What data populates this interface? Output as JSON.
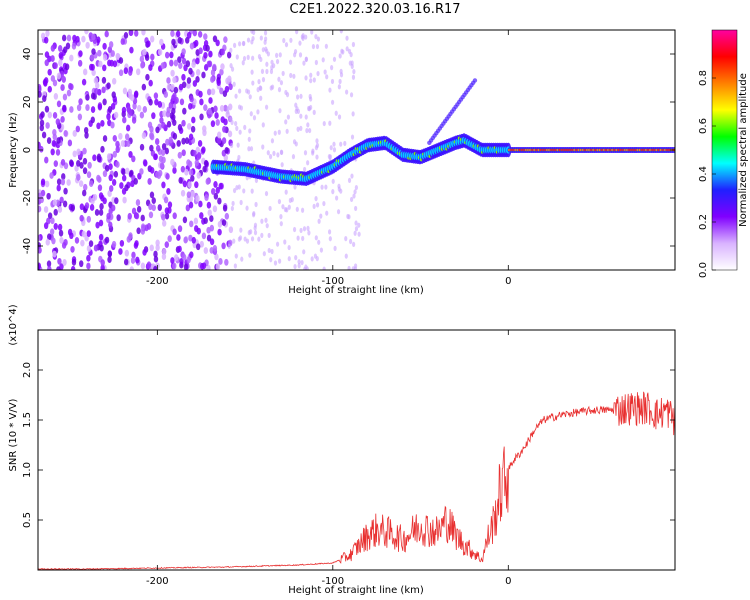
{
  "title": "C2E1.2022.320.03.16.R17",
  "colors": {
    "line": "#e83030",
    "axis": "#000000",
    "background": "#ffffff"
  },
  "chart_data": [
    {
      "type": "heatmap",
      "xlabel": "Height of straight line (km)",
      "ylabel": "Frequency (Hz)",
      "xlim": [
        -268,
        95
      ],
      "ylim": [
        -50,
        50
      ],
      "xticks": [
        -200,
        -100,
        0
      ],
      "yticks": [
        -40,
        -20,
        0,
        20,
        40
      ],
      "colorbar": {
        "label": "Normalized spectral amplitude",
        "range": [
          0,
          1
        ],
        "ticks": [
          "0.0",
          "0.2",
          "0.4",
          "0.6",
          "0.8"
        ],
        "colormap": [
          "#ffffff",
          "#d9b3ff",
          "#8000ff",
          "#2020ff",
          "#00ffff",
          "#00ff00",
          "#ffff00",
          "#ff8000",
          "#ff0000",
          "#ff00a0"
        ]
      },
      "ridge": [
        {
          "x": -168,
          "y": -7
        },
        {
          "x": -150,
          "y": -8
        },
        {
          "x": -130,
          "y": -11
        },
        {
          "x": -115,
          "y": -12
        },
        {
          "x": -100,
          "y": -7
        },
        {
          "x": -90,
          "y": -2
        },
        {
          "x": -80,
          "y": 2
        },
        {
          "x": -70,
          "y": 3
        },
        {
          "x": -60,
          "y": -2
        },
        {
          "x": -50,
          "y": -3
        },
        {
          "x": -40,
          "y": 0
        },
        {
          "x": -30,
          "y": 3
        },
        {
          "x": -25,
          "y": 4
        },
        {
          "x": -15,
          "y": 0
        },
        {
          "x": 0,
          "y": 0
        },
        {
          "x": 95,
          "y": 0
        }
      ]
    },
    {
      "type": "line",
      "xlabel": "Height of straight line (km)",
      "ylabel": "SNR (10 * V/V)",
      "scale_label": "(x10^4)",
      "xlim": [
        -268,
        95
      ],
      "ylim": [
        0,
        2.4
      ],
      "xticks": [
        -200,
        -100,
        0
      ],
      "yticks": [
        0.5,
        1.0,
        1.5,
        2.0
      ],
      "series": [
        {
          "values_units": "x10^4",
          "x": [
            -268,
            -240,
            -200,
            -160,
            -140,
            -120,
            -100,
            -90,
            -85,
            -80,
            -75,
            -70,
            -65,
            -60,
            -55,
            -50,
            -45,
            -40,
            -35,
            -30,
            -25,
            -20,
            -15,
            -12,
            -8,
            -5,
            -2,
            0,
            3,
            6,
            10,
            15,
            20,
            30,
            40,
            50,
            60,
            70,
            80,
            85,
            90,
            95
          ],
          "y": [
            0.01,
            0.01,
            0.02,
            0.03,
            0.04,
            0.05,
            0.07,
            0.15,
            0.25,
            0.35,
            0.4,
            0.38,
            0.35,
            0.3,
            0.38,
            0.45,
            0.4,
            0.38,
            0.5,
            0.35,
            0.25,
            0.18,
            0.1,
            0.3,
            0.5,
            0.75,
            0.9,
            1.0,
            1.1,
            1.15,
            1.25,
            1.4,
            1.5,
            1.55,
            1.58,
            1.6,
            1.6,
            1.62,
            1.62,
            1.55,
            1.6,
            1.5
          ]
        }
      ]
    }
  ]
}
